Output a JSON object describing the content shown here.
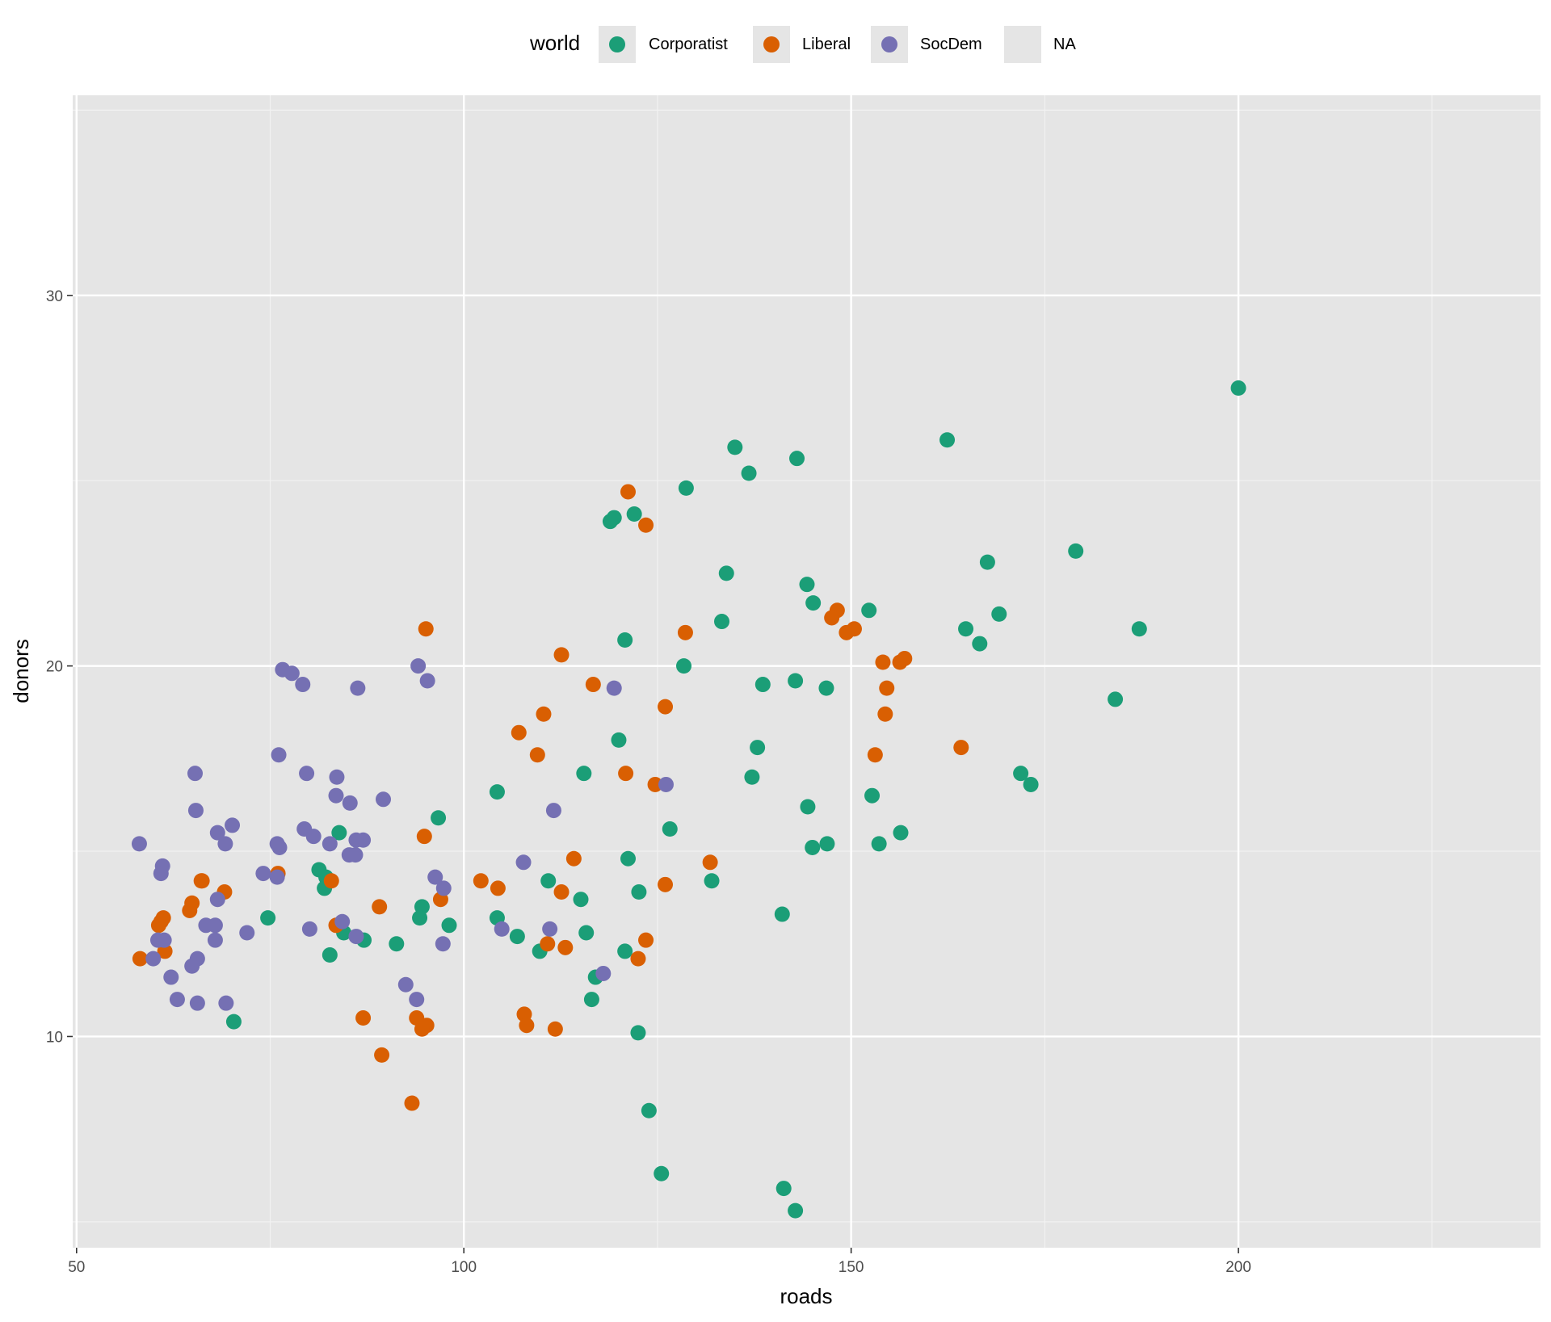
{
  "chart_data": {
    "type": "scatter",
    "title": "",
    "xlabel": "roads",
    "ylabel": "donors",
    "xlim": [
      49.5,
      239
    ],
    "ylim": [
      4.3,
      35.4
    ],
    "xticks": [
      50,
      100,
      150,
      200
    ],
    "xtick_labels": [
      "50",
      "100",
      "150",
      "200"
    ],
    "yticks": [
      10,
      20,
      30
    ],
    "ytick_labels": [
      "10",
      "20",
      "30"
    ],
    "grid": true,
    "legend_position": "top",
    "legend_title": "world",
    "background_color": "#e5e5e5",
    "series": [
      {
        "name": "Corporatist",
        "color": "#1b9e77",
        "points": [
          [
            200,
            27.5
          ],
          [
            162.4,
            26.1
          ],
          [
            135,
            25.9
          ],
          [
            143,
            25.6
          ],
          [
            136.8,
            25.2
          ],
          [
            128.7,
            24.8
          ],
          [
            122,
            24.1
          ],
          [
            119.4,
            24
          ],
          [
            118.9,
            23.9
          ],
          [
            179,
            23.1
          ],
          [
            167.6,
            22.8
          ],
          [
            133.9,
            22.5
          ],
          [
            144.3,
            22.2
          ],
          [
            145.1,
            21.7
          ],
          [
            152.3,
            21.5
          ],
          [
            169.1,
            21.4
          ],
          [
            133.3,
            21.2
          ],
          [
            164.8,
            21
          ],
          [
            187.2,
            21
          ],
          [
            120.8,
            20.7
          ],
          [
            166.6,
            20.6
          ],
          [
            128.4,
            20
          ],
          [
            142.8,
            19.6
          ],
          [
            138.6,
            19.5
          ],
          [
            146.8,
            19.4
          ],
          [
            184.1,
            19.1
          ],
          [
            120,
            18
          ],
          [
            137.9,
            17.8
          ],
          [
            115.5,
            17.1
          ],
          [
            137.2,
            17
          ],
          [
            171.9,
            17.1
          ],
          [
            173.2,
            16.8
          ],
          [
            104.3,
            16.6
          ],
          [
            152.7,
            16.5
          ],
          [
            144.4,
            16.2
          ],
          [
            96.7,
            15.9
          ],
          [
            126.6,
            15.6
          ],
          [
            83.9,
            15.5
          ],
          [
            156.4,
            15.5
          ],
          [
            146.9,
            15.2
          ],
          [
            153.6,
            15.2
          ],
          [
            145,
            15.1
          ],
          [
            121.2,
            14.8
          ],
          [
            81.3,
            14.5
          ],
          [
            82.2,
            14.3
          ],
          [
            82,
            14
          ],
          [
            110.9,
            14.2
          ],
          [
            132,
            14.2
          ],
          [
            122.6,
            13.9
          ],
          [
            115.1,
            13.7
          ],
          [
            94.6,
            13.5
          ],
          [
            74.7,
            13.2
          ],
          [
            94.3,
            13.2
          ],
          [
            104.3,
            13.2
          ],
          [
            98.1,
            13
          ],
          [
            84.5,
            12.8
          ],
          [
            106.9,
            12.7
          ],
          [
            115.8,
            12.8
          ],
          [
            87.1,
            12.6
          ],
          [
            91.3,
            12.5
          ],
          [
            109.8,
            12.3
          ],
          [
            120.8,
            12.3
          ],
          [
            82.7,
            12.2
          ],
          [
            117,
            11.6
          ],
          [
            116.5,
            11
          ],
          [
            70.3,
            10.4
          ],
          [
            122.5,
            10.1
          ],
          [
            123.9,
            8
          ],
          [
            125.5,
            6.3
          ],
          [
            141.3,
            5.9
          ],
          [
            142.8,
            5.3
          ],
          [
            141.1,
            13.3
          ]
        ]
      },
      {
        "name": "Liberal",
        "color": "#d95f02",
        "points": [
          [
            121.2,
            24.7
          ],
          [
            123.5,
            23.8
          ],
          [
            148.2,
            21.5
          ],
          [
            147.5,
            21.3
          ],
          [
            150.4,
            21
          ],
          [
            149.4,
            20.9
          ],
          [
            95.1,
            21
          ],
          [
            128.6,
            20.9
          ],
          [
            112.6,
            20.3
          ],
          [
            154.1,
            20.1
          ],
          [
            156.3,
            20.1
          ],
          [
            156.9,
            20.2
          ],
          [
            116.7,
            19.5
          ],
          [
            154.6,
            19.4
          ],
          [
            126,
            18.9
          ],
          [
            110.3,
            18.7
          ],
          [
            154.4,
            18.7
          ],
          [
            107.1,
            18.2
          ],
          [
            109.5,
            17.6
          ],
          [
            164.2,
            17.8
          ],
          [
            153.1,
            17.6
          ],
          [
            120.9,
            17.1
          ],
          [
            124.7,
            16.8
          ],
          [
            94.9,
            15.4
          ],
          [
            114.2,
            14.8
          ],
          [
            131.8,
            14.7
          ],
          [
            66.1,
            14.2
          ],
          [
            76,
            14.4
          ],
          [
            66.2,
            14.2
          ],
          [
            102.2,
            14.2
          ],
          [
            82.9,
            14.2
          ],
          [
            104.4,
            14
          ],
          [
            126,
            14.1
          ],
          [
            69.1,
            13.9
          ],
          [
            112.6,
            13.9
          ],
          [
            97,
            13.7
          ],
          [
            89.1,
            13.5
          ],
          [
            64.9,
            13.6
          ],
          [
            64.6,
            13.4
          ],
          [
            61.2,
            13.2
          ],
          [
            60.9,
            13.1
          ],
          [
            60.6,
            13
          ],
          [
            83.5,
            13
          ],
          [
            123.5,
            12.6
          ],
          [
            110.8,
            12.5
          ],
          [
            113.1,
            12.4
          ],
          [
            61.4,
            12.3
          ],
          [
            58.2,
            12.1
          ],
          [
            122.5,
            12.1
          ],
          [
            107.8,
            10.6
          ],
          [
            87,
            10.5
          ],
          [
            93.9,
            10.5
          ],
          [
            95.2,
            10.3
          ],
          [
            94.6,
            10.2
          ],
          [
            108.1,
            10.3
          ],
          [
            111.8,
            10.2
          ],
          [
            89.4,
            9.5
          ],
          [
            93.3,
            8.2
          ]
        ]
      },
      {
        "name": "SocDem",
        "color": "#7570b3",
        "points": [
          [
            94.1,
            20
          ],
          [
            76.6,
            19.9
          ],
          [
            77.8,
            19.8
          ],
          [
            79.2,
            19.5
          ],
          [
            95.3,
            19.6
          ],
          [
            86.3,
            19.4
          ],
          [
            119.4,
            19.4
          ],
          [
            76.1,
            17.6
          ],
          [
            65.3,
            17.1
          ],
          [
            79.7,
            17.1
          ],
          [
            83.6,
            17
          ],
          [
            126.1,
            16.8
          ],
          [
            83.5,
            16.5
          ],
          [
            89.6,
            16.4
          ],
          [
            85.3,
            16.3
          ],
          [
            65.4,
            16.1
          ],
          [
            111.6,
            16.1
          ],
          [
            70.1,
            15.7
          ],
          [
            79.4,
            15.6
          ],
          [
            68.2,
            15.5
          ],
          [
            80.6,
            15.4
          ],
          [
            58.1,
            15.2
          ],
          [
            75.9,
            15.2
          ],
          [
            69.2,
            15.2
          ],
          [
            82.7,
            15.2
          ],
          [
            87,
            15.3
          ],
          [
            86.1,
            15.3
          ],
          [
            76.2,
            15.1
          ],
          [
            85.2,
            14.9
          ],
          [
            86,
            14.9
          ],
          [
            107.7,
            14.7
          ],
          [
            61.1,
            14.6
          ],
          [
            60.9,
            14.4
          ],
          [
            74.1,
            14.4
          ],
          [
            75.9,
            14.3
          ],
          [
            96.3,
            14.3
          ],
          [
            97.4,
            14
          ],
          [
            68.2,
            13.7
          ],
          [
            84.3,
            13.1
          ],
          [
            66.7,
            13
          ],
          [
            67.9,
            13
          ],
          [
            104.9,
            12.9
          ],
          [
            80.1,
            12.9
          ],
          [
            111.1,
            12.9
          ],
          [
            72,
            12.8
          ],
          [
            86.1,
            12.7
          ],
          [
            60.5,
            12.6
          ],
          [
            61.3,
            12.6
          ],
          [
            67.9,
            12.6
          ],
          [
            97.3,
            12.5
          ],
          [
            59.9,
            12.1
          ],
          [
            65.6,
            12.1
          ],
          [
            64.9,
            11.9
          ],
          [
            62.2,
            11.6
          ],
          [
            118,
            11.7
          ],
          [
            92.5,
            11.4
          ],
          [
            63,
            11
          ],
          [
            93.9,
            11
          ],
          [
            65.6,
            10.9
          ],
          [
            69.3,
            10.9
          ]
        ]
      }
    ],
    "legend_entries": [
      "Corporatist",
      "Liberal",
      "SocDem",
      "NA"
    ]
  }
}
